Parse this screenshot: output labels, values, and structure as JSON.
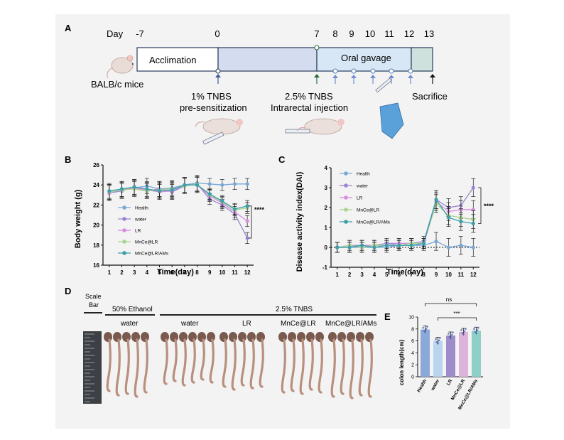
{
  "panel_labels": {
    "a": "A",
    "b": "B",
    "c": "C",
    "d": "D",
    "e": "E"
  },
  "timeline": {
    "day_label": "Day",
    "days": [
      "-7",
      "0",
      "7",
      "8",
      "9",
      "10",
      "11",
      "12",
      "13"
    ],
    "acclimation": "Acclimation",
    "oral_gavage": "Oral gavage",
    "mice": "BALB/c mice",
    "tnbs1_line1": "1% TNBS",
    "tnbs1_line2": "pre-sensitization",
    "tnbs2_line1": "2.5% TNBS",
    "tnbs2_line2": "Intrarectal injection",
    "sacrifice": "Sacrifice"
  },
  "photo": {
    "scale_bar_line1": "Scale",
    "scale_bar_line2": "Bar",
    "ethanol_label": "50% Ethanol",
    "tnbs_label": "2.5% TNBS",
    "group_water1": "water",
    "group_water2": "water",
    "group_lr": "LR",
    "group_mnce_lr": "MnCe@LR",
    "group_mnce_lr_ams": "MnCe@LR/AMs"
  },
  "colors": {
    "health": "#7aa7d6",
    "water": "#9a84d2",
    "lr": "#d88ce0",
    "mnce_lr": "#a7d48f",
    "mnce_lr_ams": "#3a9fa8"
  },
  "chart_data": [
    {
      "id": "body_weight",
      "type": "line",
      "xlabel": "Time(day)",
      "ylabel": "Body weight  (g)",
      "x": [
        1,
        2,
        3,
        4,
        5,
        6,
        7,
        8,
        9,
        10,
        11,
        12
      ],
      "ylim": [
        16,
        26
      ],
      "yticks": [
        "16",
        "18",
        "20",
        "22",
        "24",
        "26"
      ],
      "significance": "****",
      "series": [
        {
          "name": "Health",
          "values": [
            23.3,
            23.5,
            23.7,
            23.9,
            23.6,
            23.7,
            24.0,
            24.2,
            24.1,
            24.0,
            24.1,
            24.1
          ]
        },
        {
          "name": "water",
          "values": [
            23.2,
            23.4,
            23.8,
            23.4,
            23.6,
            23.3,
            23.9,
            24.1,
            22.6,
            22.0,
            21.1,
            18.7
          ]
        },
        {
          "name": "LR",
          "values": [
            23.2,
            23.6,
            23.7,
            23.5,
            23.3,
            23.4,
            24.0,
            24.0,
            22.9,
            22.2,
            21.3,
            20.4
          ]
        },
        {
          "name": "MnCe@LR",
          "values": [
            23.3,
            23.5,
            23.6,
            23.4,
            23.5,
            23.6,
            23.9,
            24.1,
            23.0,
            22.3,
            21.5,
            21.7
          ]
        },
        {
          "name": "MnCe@LR/AMs",
          "values": [
            23.4,
            23.6,
            23.8,
            23.6,
            23.4,
            23.5,
            24.0,
            24.0,
            23.1,
            22.4,
            21.6,
            21.9
          ]
        }
      ]
    },
    {
      "id": "dai",
      "type": "line",
      "xlabel": "Time(day)",
      "ylabel": "Disease activity index(DAI)",
      "x": [
        1,
        2,
        3,
        4,
        5,
        6,
        7,
        8,
        9,
        10,
        11,
        12
      ],
      "ylim": [
        -1,
        4
      ],
      "yticks": [
        "-1",
        "0",
        "1",
        "2",
        "3",
        "4"
      ],
      "significance": "****",
      "series": [
        {
          "name": "Health",
          "values": [
            0,
            0,
            0,
            0,
            0,
            0.1,
            0.1,
            0.1,
            0.3,
            0,
            0.1,
            0
          ]
        },
        {
          "name": "water",
          "values": [
            0,
            0.1,
            0.1,
            0.1,
            0.2,
            0.2,
            0.2,
            0.3,
            2.4,
            2.0,
            2.1,
            3.0
          ]
        },
        {
          "name": "LR",
          "values": [
            0,
            0,
            0.1,
            0.1,
            0.1,
            0.2,
            0.2,
            0.2,
            2.3,
            1.8,
            1.9,
            1.9
          ]
        },
        {
          "name": "MnCe@LR",
          "values": [
            0,
            0.1,
            0,
            0.1,
            0.1,
            0.1,
            0.2,
            0.2,
            2.2,
            1.6,
            1.5,
            1.4
          ]
        },
        {
          "name": "MnCe@LR/AMs",
          "values": [
            0,
            0,
            0.1,
            0,
            0.1,
            0.1,
            0.1,
            0.2,
            2.4,
            1.5,
            1.3,
            1.2
          ]
        }
      ]
    },
    {
      "id": "colon_length",
      "type": "bar",
      "ylabel": "colon length(cm)",
      "categories": [
        "Health",
        "water",
        "LR",
        "MnCe@LR",
        "MnCe@LR/AMs"
      ],
      "values": [
        7.9,
        6.0,
        6.9,
        7.5,
        7.7
      ],
      "ylim": [
        0,
        10
      ],
      "yticks": [
        "0",
        "2",
        "4",
        "6",
        "8",
        "10"
      ],
      "comparisons": [
        {
          "label": "ns",
          "from": "Health",
          "to": "MnCe@LR/AMs"
        },
        {
          "label": "***",
          "from": "water",
          "to": "MnCe@LR/AMs"
        }
      ]
    }
  ]
}
